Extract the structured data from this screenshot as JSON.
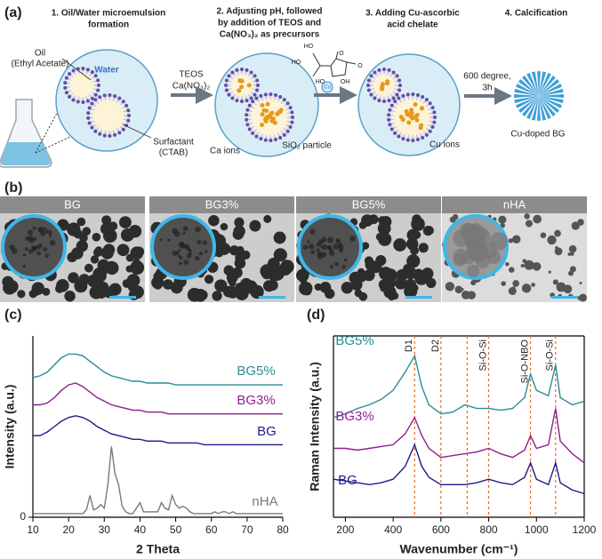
{
  "panel_a": {
    "label": "(a)",
    "steps": [
      [
        "1.  Oil/Water microemulsion",
        "formation"
      ],
      [
        "2. Adjusting pH, followed",
        "by addition of TEOS and",
        "Ca(NO₃)₂ as precursors"
      ],
      [
        "3. Adding Cu-ascorbic",
        "acid chelate"
      ],
      [
        "4. Calcification"
      ]
    ],
    "oil": [
      "Oil",
      "(Ethyl Acetate)"
    ],
    "water": "Water",
    "surfactant": [
      "Surfactant",
      "(CTAB)"
    ],
    "reagents": [
      "TEOS",
      "Ca(NO₃)₂"
    ],
    "molecule_atoms": [
      "HO",
      "HO",
      "O",
      "O",
      "HO",
      "OH"
    ],
    "copper": "Cu",
    "ca_ions": "Ca ions",
    "silica": "SiO₂ particle",
    "cu_ions": "Cu ions",
    "conditions": [
      "600 degree,",
      "3h"
    ],
    "product": "Cu-doped BG"
  },
  "panel_b": {
    "label": "(b)",
    "titles": [
      "BG",
      "BG3%",
      "BG5%",
      "nHA"
    ]
  },
  "chart_data": [
    {
      "type": "line",
      "panel_label": "(c)",
      "x_label": "2 Theta",
      "y_label": "Intensity (a.u.)",
      "xlim": [
        10,
        80
      ],
      "xticks": [
        10,
        20,
        30,
        40,
        50,
        60,
        70,
        80
      ],
      "ylim": [
        0,
        100
      ],
      "yticks": [
        0
      ],
      "series": [
        {
          "name": "BG5%",
          "color": "#2a8c96",
          "x": [
            10,
            12,
            14,
            16,
            18,
            20,
            22,
            24,
            26,
            28,
            30,
            32,
            34,
            36,
            38,
            40,
            42,
            44,
            46,
            48,
            50,
            52,
            54,
            56,
            58,
            60,
            62,
            64,
            66,
            68,
            70,
            72,
            74,
            76,
            78,
            80
          ],
          "values": [
            77,
            78,
            80,
            84,
            88,
            90,
            90,
            89,
            86,
            83,
            80,
            78,
            77,
            76,
            75,
            75,
            74,
            74,
            74,
            74,
            73,
            73,
            73,
            73,
            73,
            73,
            73,
            73,
            73,
            73,
            73,
            73,
            73,
            73,
            73,
            73
          ]
        },
        {
          "name": "BG3%",
          "color": "#8e1f8e",
          "x": [
            10,
            12,
            14,
            16,
            18,
            20,
            22,
            24,
            26,
            28,
            30,
            32,
            34,
            36,
            38,
            40,
            42,
            44,
            46,
            48,
            50,
            52,
            54,
            56,
            58,
            60,
            62,
            64,
            66,
            68,
            70,
            72,
            74,
            76,
            78,
            80
          ],
          "values": [
            62,
            62,
            63,
            66,
            70,
            73,
            74,
            72,
            69,
            66,
            64,
            62,
            61,
            60,
            59,
            59,
            58,
            58,
            58,
            57,
            57,
            57,
            57,
            57,
            57,
            57,
            57,
            57,
            57,
            57,
            57,
            57,
            57,
            57,
            57,
            57
          ]
        },
        {
          "name": "BG",
          "color": "#1c1c8c",
          "x": [
            10,
            12,
            14,
            16,
            18,
            20,
            22,
            24,
            26,
            28,
            30,
            32,
            34,
            36,
            38,
            40,
            42,
            44,
            46,
            48,
            50,
            52,
            54,
            56,
            58,
            60,
            62,
            64,
            66,
            68,
            70,
            72,
            74,
            76,
            78,
            80
          ],
          "values": [
            45,
            45,
            47,
            50,
            53,
            55,
            56,
            55,
            53,
            50,
            48,
            46,
            45,
            44,
            43,
            43,
            42,
            42,
            42,
            41,
            41,
            41,
            41,
            41,
            40,
            40,
            40,
            40,
            40,
            40,
            40,
            40,
            40,
            40,
            40,
            40
          ]
        },
        {
          "name": "nHA",
          "color": "#7a7a7a",
          "x": [
            10,
            11,
            12,
            13,
            14,
            15,
            16,
            17,
            18,
            19,
            20,
            21,
            22,
            23,
            24,
            25,
            26,
            27,
            28,
            29,
            30,
            31,
            32,
            33,
            34,
            35,
            36,
            37,
            38,
            39,
            40,
            41,
            42,
            43,
            44,
            45,
            46,
            47,
            48,
            49,
            50,
            51,
            52,
            53,
            54,
            55,
            56,
            57,
            58,
            59,
            60,
            61,
            62,
            63,
            64,
            65,
            66,
            67,
            68,
            69,
            70,
            71,
            72,
            73,
            74,
            75,
            76,
            77,
            78,
            79,
            80
          ],
          "values": [
            2,
            2,
            2,
            2,
            2,
            2,
            2,
            2,
            2,
            2,
            2,
            2,
            2,
            2,
            2,
            4,
            12,
            4,
            5,
            7,
            5,
            18,
            39,
            24,
            18,
            6,
            3,
            2,
            2,
            5,
            8,
            3,
            3,
            3,
            3,
            3,
            8,
            5,
            4,
            12,
            7,
            5,
            6,
            5,
            3,
            2,
            2,
            2,
            2,
            2,
            2,
            3,
            2,
            3,
            3,
            2,
            3,
            2,
            2,
            2,
            2,
            2,
            2,
            2,
            2,
            2,
            2,
            2,
            2,
            2,
            2
          ]
        }
      ]
    },
    {
      "type": "line",
      "panel_label": "(d)",
      "x_label": "Wavenumber (cm⁻¹)",
      "y_label": "Raman Intensity (a.u.)",
      "xlim": [
        150,
        1200
      ],
      "xticks": [
        200,
        400,
        600,
        800,
        1000,
        1200
      ],
      "ylim": [
        0,
        100
      ],
      "reference_lines": [
        {
          "x": 490,
          "label": "D1"
        },
        {
          "x": 600,
          "label": "D2"
        },
        {
          "x": 710
        },
        {
          "x": 800,
          "label": "Si-O-Si"
        },
        {
          "x": 975,
          "label": "Si-O-NBO"
        },
        {
          "x": 1080,
          "label": "Si-O-Si"
        }
      ],
      "series": [
        {
          "name": "BG5%",
          "color": "#2a8c96",
          "x": [
            150,
            200,
            250,
            300,
            350,
            400,
            450,
            490,
            520,
            550,
            600,
            650,
            700,
            750,
            800,
            850,
            900,
            950,
            975,
            1000,
            1050,
            1080,
            1100,
            1150,
            1200
          ],
          "values": [
            55,
            57,
            60,
            62,
            65,
            70,
            80,
            89,
            72,
            62,
            57,
            58,
            62,
            60,
            60,
            59,
            60,
            66,
            79,
            70,
            67,
            84,
            66,
            62,
            64
          ]
        },
        {
          "name": "BG3%",
          "color": "#8e1f8e",
          "x": [
            150,
            200,
            250,
            300,
            350,
            400,
            450,
            490,
            520,
            550,
            600,
            650,
            700,
            750,
            800,
            850,
            900,
            950,
            975,
            1000,
            1050,
            1080,
            1100,
            1150,
            1200
          ],
          "values": [
            38,
            38,
            37,
            38,
            39,
            40,
            46,
            55,
            45,
            38,
            33,
            34,
            35,
            36,
            38,
            35,
            33,
            37,
            45,
            38,
            40,
            60,
            42,
            35,
            30
          ]
        },
        {
          "name": "BG",
          "color": "#1c1c8c",
          "x": [
            150,
            200,
            250,
            300,
            350,
            400,
            450,
            490,
            520,
            550,
            600,
            650,
            700,
            750,
            800,
            850,
            900,
            950,
            975,
            1000,
            1050,
            1080,
            1100,
            1150,
            1200
          ],
          "values": [
            21,
            20,
            19,
            18,
            19,
            21,
            28,
            40,
            28,
            22,
            18,
            18,
            18,
            19,
            21,
            19,
            18,
            22,
            30,
            21,
            18,
            30,
            19,
            15,
            13
          ]
        }
      ]
    }
  ]
}
